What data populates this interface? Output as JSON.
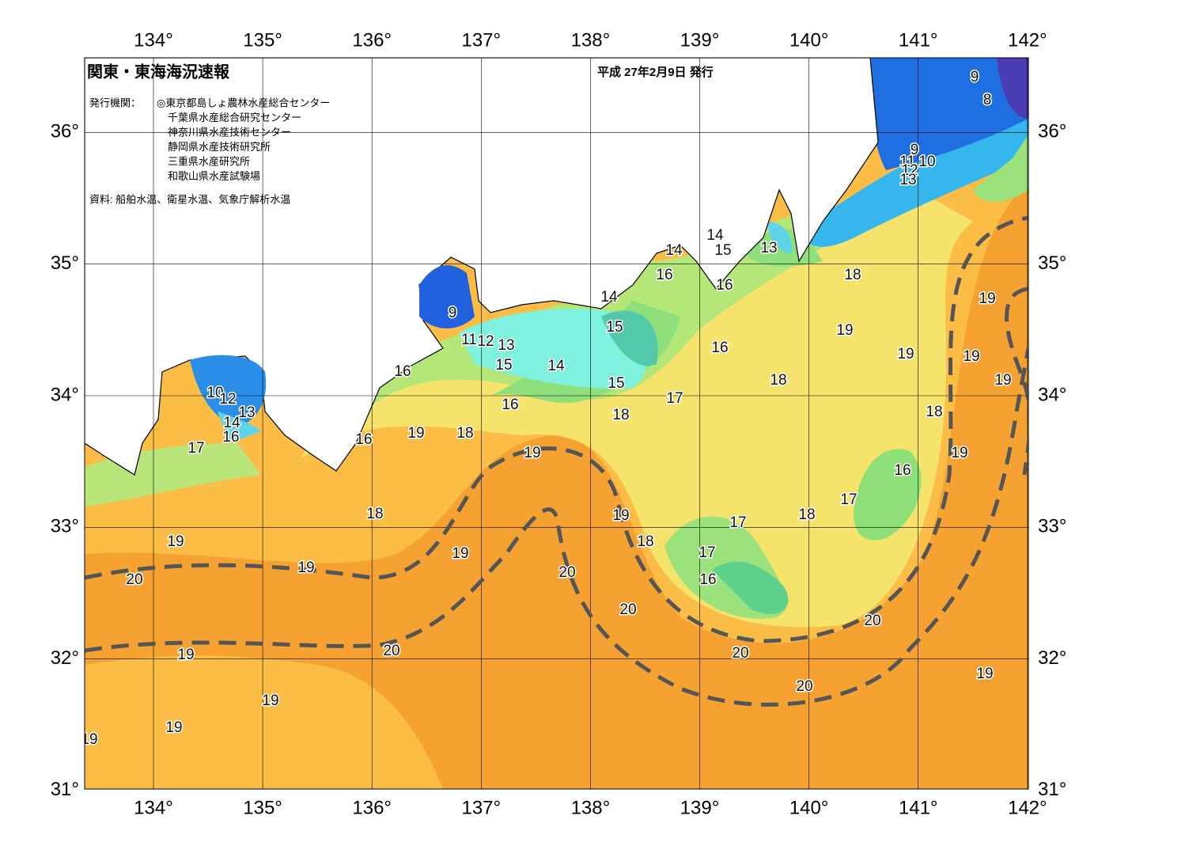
{
  "map": {
    "title": "関東・東海海況速報",
    "date": "平成 27年2月9日 発行",
    "issuer_label": "発行機関：",
    "issuers": [
      "◎東京都島しょ農林水産総合センター",
      "千葉県水産総合研究センター",
      "神奈川県水産技術センター",
      "静岡県水産技術研究所",
      "三重県水産研究所",
      "和歌山県水産試験場"
    ],
    "source": "資料: 船舶水温、衛星水温、気象庁解析水温",
    "lon_ticks": [
      {
        "value": 134,
        "label": "134°"
      },
      {
        "value": 135,
        "label": "135°"
      },
      {
        "value": 136,
        "label": "136°"
      },
      {
        "value": 137,
        "label": "137°"
      },
      {
        "value": 138,
        "label": "138°"
      },
      {
        "value": 139,
        "label": "139°"
      },
      {
        "value": 140,
        "label": "140°"
      },
      {
        "value": 141,
        "label": "141°"
      },
      {
        "value": 142,
        "label": "142°"
      }
    ],
    "lat_ticks": [
      {
        "value": 36,
        "label": "36°"
      },
      {
        "value": 35,
        "label": "35°"
      },
      {
        "value": 34,
        "label": "34°"
      },
      {
        "value": 33,
        "label": "33°"
      },
      {
        "value": 32,
        "label": "32°"
      },
      {
        "value": 31,
        "label": "31°"
      }
    ],
    "contour_labels": [
      "9",
      "8",
      "9",
      "11",
      "10",
      "12",
      "13",
      "14",
      "15",
      "13",
      "14",
      "16",
      "16",
      "18",
      "14",
      "15",
      "9",
      "11",
      "12",
      "13",
      "15",
      "14",
      "16",
      "15",
      "16",
      "18",
      "17",
      "19",
      "19",
      "19",
      "19",
      "19",
      "18",
      "16",
      "18",
      "19",
      "18",
      "16",
      "10",
      "12",
      "13",
      "14",
      "16",
      "17",
      "19",
      "19",
      "16",
      "17",
      "18",
      "19",
      "18",
      "17",
      "19",
      "18",
      "19",
      "17",
      "19",
      "20",
      "20",
      "16",
      "20",
      "20",
      "20",
      "19",
      "20",
      "19",
      "20",
      "19",
      "19",
      "19"
    ]
  }
}
